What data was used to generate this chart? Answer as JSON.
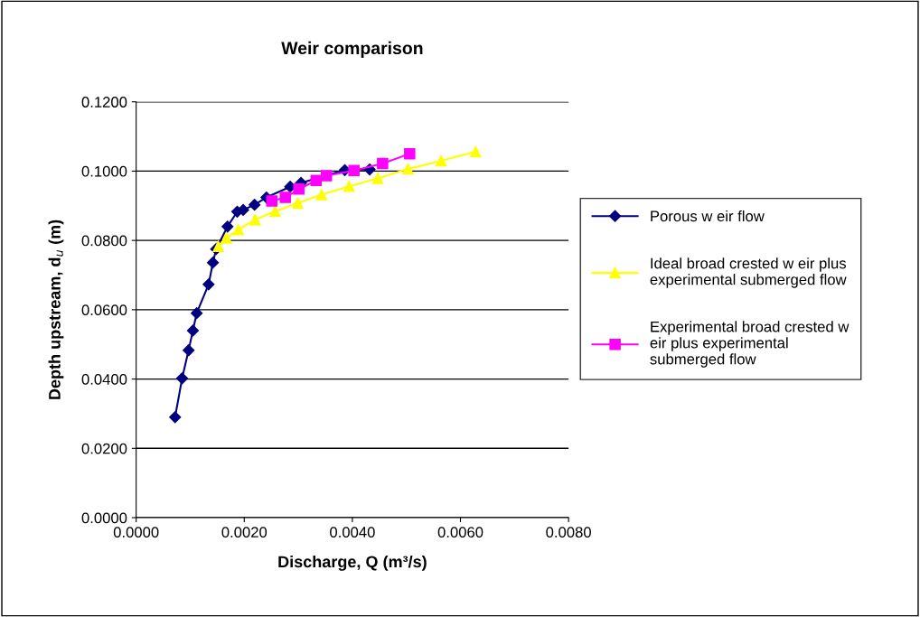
{
  "chart_data": {
    "type": "line",
    "title": "Weir comparison",
    "xlabel": "Discharge, Q (m³/s)",
    "ylabel": "Depth upstream, d$_{u}$ (m)",
    "xlim": [
      0,
      0.008
    ],
    "ylim": [
      0,
      0.12
    ],
    "xticks": [
      {
        "value": 0,
        "label": "0.0000"
      },
      {
        "value": 0.002,
        "label": "0.0020"
      },
      {
        "value": 0.004,
        "label": "0.0040"
      },
      {
        "value": 0.006,
        "label": "0.0060"
      },
      {
        "value": 0.008,
        "label": "0.0080"
      }
    ],
    "yticks": [
      {
        "value": 0,
        "label": "0.0000"
      },
      {
        "value": 0.02,
        "label": "0.0200"
      },
      {
        "value": 0.04,
        "label": "0.0400"
      },
      {
        "value": 0.06,
        "label": "0.0600"
      },
      {
        "value": 0.08,
        "label": "0.0800"
      },
      {
        "value": 0.1,
        "label": "0.1000"
      },
      {
        "value": 0.12,
        "label": "0.1200"
      }
    ],
    "grid": "y",
    "legend": "right",
    "line_style": "solid",
    "series": [
      {
        "name": "Porous w eir flow",
        "color": "#000080",
        "marker": "diamond",
        "x": [
          0.00072,
          0.00085,
          0.00097,
          0.00105,
          0.00112,
          0.00134,
          0.00142,
          0.00148,
          0.00169,
          0.00187,
          0.00198,
          0.00219,
          0.00241,
          0.00285,
          0.00305,
          0.00386,
          0.00432
        ],
        "values": [
          0.029,
          0.0402,
          0.0483,
          0.054,
          0.059,
          0.0673,
          0.0736,
          0.0775,
          0.084,
          0.0883,
          0.0888,
          0.0903,
          0.0924,
          0.0955,
          0.0966,
          0.1003,
          0.1005
        ]
      },
      {
        "name": "Ideal broad crested w eir plus experimental submerged flow",
        "color": "#ffff00",
        "marker": "triangle",
        "x": [
          0.00152,
          0.00167,
          0.00189,
          0.0022,
          0.00257,
          0.00299,
          0.00343,
          0.00394,
          0.00447,
          0.00503,
          0.00564,
          0.00628
        ],
        "values": [
          0.0783,
          0.0807,
          0.0831,
          0.086,
          0.0884,
          0.0908,
          0.0932,
          0.0956,
          0.0979,
          0.1006,
          0.103,
          0.1056
        ]
      },
      {
        "name": "Experimental broad crested w eir plus experimental submerged flow",
        "color": "#ff00ff",
        "marker": "square",
        "x": [
          0.00251,
          0.00276,
          0.00301,
          0.00333,
          0.00352,
          0.00403,
          0.00456,
          0.00506
        ],
        "values": [
          0.0914,
          0.0924,
          0.0948,
          0.0973,
          0.0987,
          0.1002,
          0.1022,
          0.105
        ]
      }
    ]
  }
}
